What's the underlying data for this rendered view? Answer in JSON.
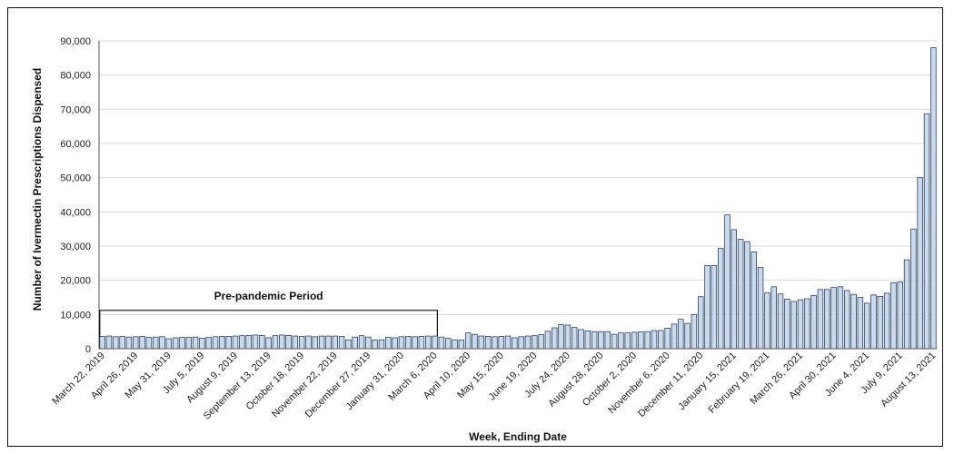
{
  "chart_data": {
    "type": "bar",
    "title": "",
    "xlabel": "Week, Ending Date",
    "ylabel": "Number of Ivermectin Prescriptions Dispensed",
    "ylim": [
      0,
      90000
    ],
    "yticks": [
      0,
      10000,
      20000,
      30000,
      40000,
      50000,
      60000,
      70000,
      80000,
      90000
    ],
    "ytick_labels": [
      "0",
      "10,000",
      "20,000",
      "30,000",
      "40,000",
      "50,000",
      "60,000",
      "70,000",
      "80,000",
      "90,000"
    ],
    "grid": true,
    "bar_color": "#c9d9ee",
    "bar_edge_color": "#1a2a44",
    "x_tick_labels": [
      {
        "index": 0,
        "label": "March 22, 2019"
      },
      {
        "index": 5,
        "label": "April 26, 2019"
      },
      {
        "index": 10,
        "label": "May 31, 2019"
      },
      {
        "index": 15,
        "label": "July 5, 2019"
      },
      {
        "index": 20,
        "label": "August 9, 2019"
      },
      {
        "index": 25,
        "label": "September 13, 2019"
      },
      {
        "index": 30,
        "label": "October 18, 2019"
      },
      {
        "index": 35,
        "label": "November 22, 2019"
      },
      {
        "index": 40,
        "label": "December 27, 2019"
      },
      {
        "index": 45,
        "label": "January 31, 2020"
      },
      {
        "index": 50,
        "label": "March 6, 2020"
      },
      {
        "index": 55,
        "label": "April 10, 2020"
      },
      {
        "index": 60,
        "label": "May 15, 2020"
      },
      {
        "index": 65,
        "label": "June 19, 2020"
      },
      {
        "index": 70,
        "label": "July 24, 2020"
      },
      {
        "index": 75,
        "label": "August 28, 2020"
      },
      {
        "index": 80,
        "label": "October 2, 2020"
      },
      {
        "index": 85,
        "label": "November 6, 2020"
      },
      {
        "index": 90,
        "label": "December 11, 2020"
      },
      {
        "index": 95,
        "label": "January 15, 2021"
      },
      {
        "index": 100,
        "label": "February 19, 2021"
      },
      {
        "index": 105,
        "label": "March 26, 2021"
      },
      {
        "index": 110,
        "label": "April 30, 2021"
      },
      {
        "index": 115,
        "label": "June 4, 2021"
      },
      {
        "index": 120,
        "label": "July 9, 2021"
      },
      {
        "index": 125,
        "label": "August 13, 2021"
      }
    ],
    "values": [
      3600,
      3700,
      3500,
      3600,
      3400,
      3500,
      3600,
      3300,
      3400,
      3500,
      2900,
      3200,
      3300,
      3300,
      3400,
      3100,
      3300,
      3500,
      3600,
      3600,
      3700,
      3800,
      3900,
      4000,
      3900,
      3200,
      3800,
      4000,
      3900,
      3700,
      3600,
      3700,
      3500,
      3700,
      3700,
      3700,
      3600,
      2600,
      3400,
      3800,
      3400,
      2500,
      2600,
      3300,
      3200,
      3500,
      3600,
      3500,
      3600,
      3700,
      3700,
      3400,
      3000,
      2600,
      2500,
      4600,
      4200,
      3700,
      3600,
      3500,
      3600,
      3700,
      3200,
      3500,
      3700,
      3800,
      4100,
      5100,
      6100,
      7000,
      6900,
      6200,
      5600,
      5200,
      5000,
      5000,
      5000,
      4200,
      4600,
      4600,
      4800,
      4900,
      5000,
      5300,
      5300,
      6000,
      7200,
      8600,
      7400,
      10000,
      15200,
      24300,
      24300,
      29300,
      39100,
      34800,
      32000,
      31300,
      28300,
      23800,
      16300,
      18100,
      16000,
      14500,
      13800,
      14300,
      14600,
      15600,
      17300,
      17300,
      17900,
      18100,
      17000,
      15900,
      15000,
      13300,
      15700,
      15300,
      16200,
      19300,
      19500,
      26000,
      35000,
      50000,
      68700,
      88000
    ],
    "annotations": [
      {
        "text": "Pre-pandemic Period",
        "start_index": 0,
        "end_index": 50,
        "bracket_value": 11200
      }
    ]
  }
}
